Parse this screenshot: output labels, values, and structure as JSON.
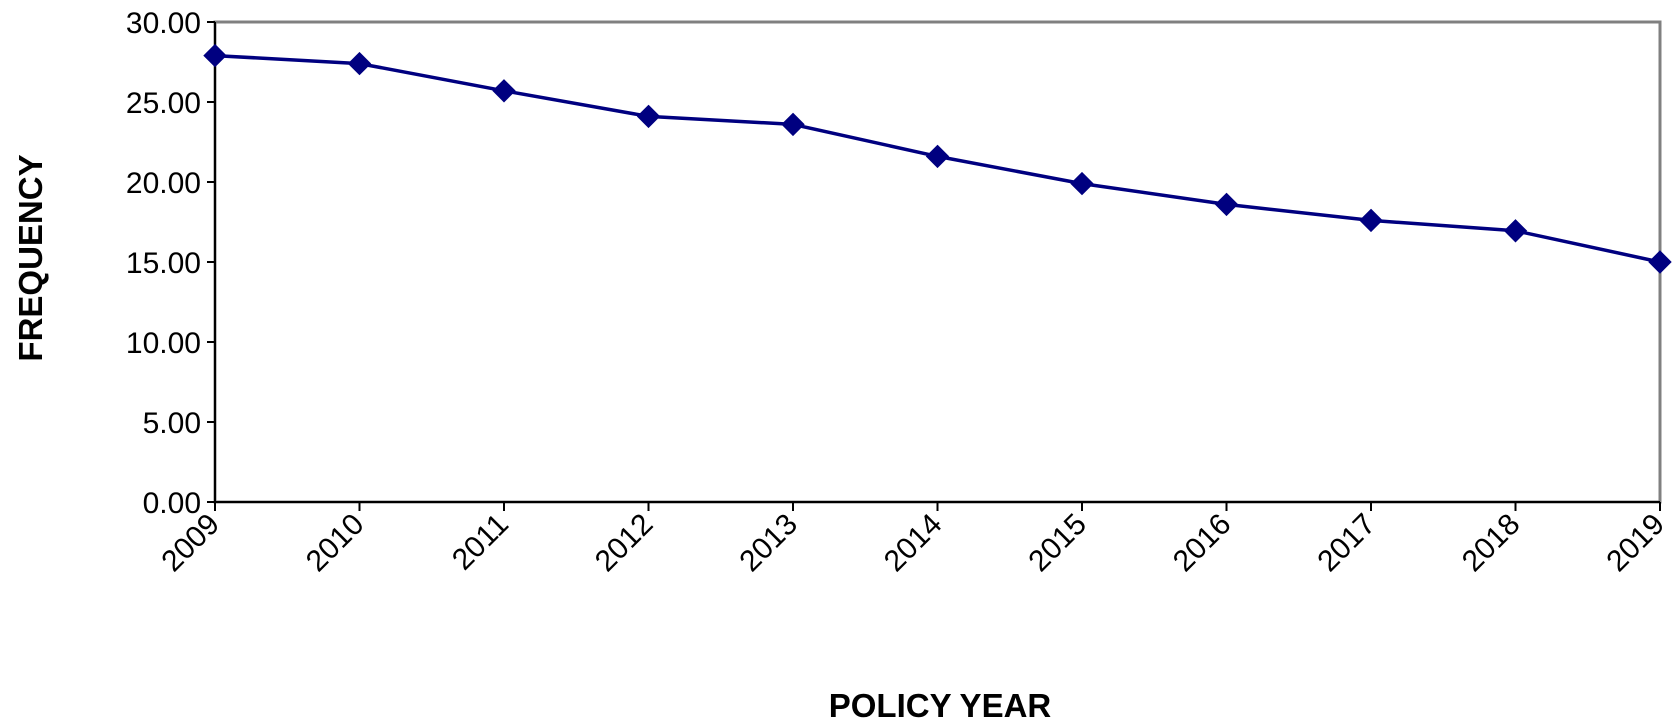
{
  "chart_data": {
    "type": "line",
    "title": "",
    "xlabel": "POLICY YEAR",
    "ylabel": "FREQUENCY",
    "categories": [
      "2009",
      "2010",
      "2011",
      "2012",
      "2013",
      "2014",
      "2015",
      "2016",
      "2017",
      "2018",
      "2019"
    ],
    "series": [
      {
        "values": [
          27.9,
          27.4,
          25.7,
          24.1,
          23.6,
          21.6,
          19.9,
          18.6,
          17.6,
          16.95,
          15.0
        ],
        "color": "#000080",
        "marker": "diamond"
      }
    ],
    "ylim": [
      0,
      30
    ],
    "yticks": [
      "0.00",
      "5.00",
      "10.00",
      "15.00",
      "20.00",
      "25.00",
      "30.00"
    ],
    "grid": false,
    "legend": "none",
    "colors": {
      "line": "#000080",
      "frame": "#808080",
      "axis": "#000000",
      "text": "#000000"
    }
  }
}
